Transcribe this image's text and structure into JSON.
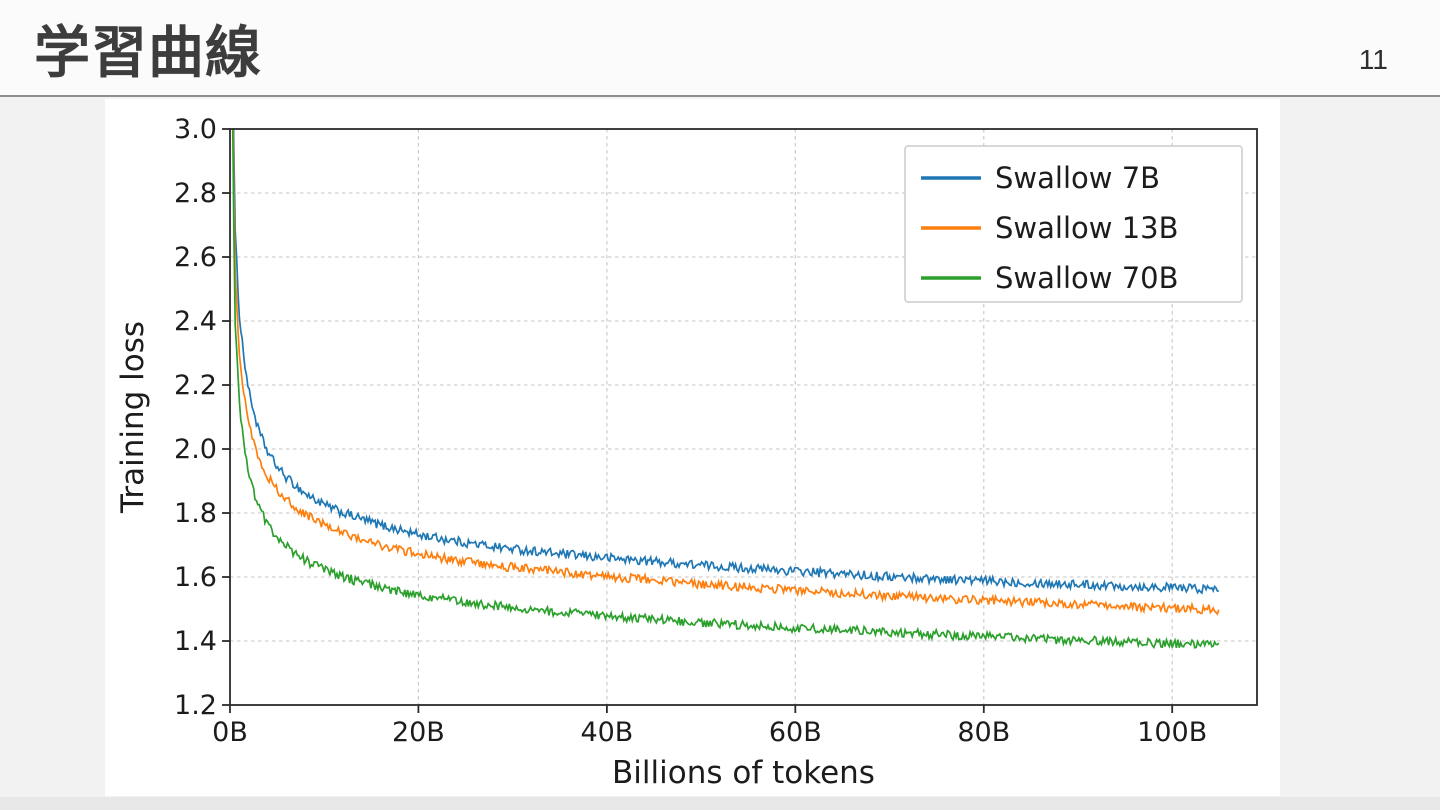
{
  "slide": {
    "title": "学習曲線",
    "page_number": "11"
  },
  "chart_data": {
    "type": "line",
    "title": "",
    "xlabel": "Billions of tokens",
    "ylabel": "Training loss",
    "xlim": [
      0,
      109
    ],
    "ylim": [
      1.2,
      3.0
    ],
    "x_ticks": [
      0,
      20,
      40,
      60,
      80,
      100
    ],
    "x_tick_labels": [
      "0B",
      "20B",
      "40B",
      "60B",
      "80B",
      "100B"
    ],
    "y_ticks": [
      1.2,
      1.4,
      1.6,
      1.8,
      2.0,
      2.2,
      2.4,
      2.6,
      2.8,
      3.0
    ],
    "y_tick_labels": [
      "1.2",
      "1.4",
      "1.6",
      "1.8",
      "2.0",
      "2.2",
      "2.4",
      "2.6",
      "2.8",
      "3.0"
    ],
    "grid": true,
    "legend_position": "upper right",
    "noise_amplitude": 0.014,
    "style": {
      "grid_color": "#c6c6c6",
      "spine_color": "#2b2b2b",
      "legend_border_color": "#cccccc",
      "text_color": "#1c1c1c",
      "plot_background": "#ffffff"
    },
    "series": [
      {
        "name": "Swallow 7B",
        "color": "#1f77b4",
        "x": [
          0.25,
          0.5,
          1,
          1.5,
          2,
          3,
          4,
          5,
          6,
          8,
          10,
          12,
          16,
          20,
          25,
          30,
          35,
          40,
          50,
          60,
          70,
          80,
          90,
          100,
          105
        ],
        "y": [
          3.3,
          2.7,
          2.42,
          2.28,
          2.18,
          2.06,
          1.99,
          1.945,
          1.91,
          1.86,
          1.825,
          1.8,
          1.762,
          1.732,
          1.707,
          1.688,
          1.672,
          1.66,
          1.637,
          1.618,
          1.601,
          1.588,
          1.577,
          1.567,
          1.562
        ]
      },
      {
        "name": "Swallow 13B",
        "color": "#ff7f0e",
        "x": [
          0.25,
          0.5,
          1,
          1.5,
          2,
          3,
          4,
          5,
          6,
          8,
          10,
          12,
          16,
          20,
          25,
          30,
          35,
          40,
          50,
          60,
          70,
          80,
          90,
          100,
          105
        ],
        "y": [
          3.2,
          2.58,
          2.3,
          2.17,
          2.08,
          1.975,
          1.915,
          1.873,
          1.842,
          1.795,
          1.762,
          1.737,
          1.7,
          1.672,
          1.648,
          1.63,
          1.615,
          1.602,
          1.578,
          1.558,
          1.541,
          1.527,
          1.514,
          1.503,
          1.498
        ]
      },
      {
        "name": "Swallow 70B",
        "color": "#2ca02c",
        "x": [
          0.25,
          0.5,
          1,
          1.5,
          2,
          3,
          4,
          5,
          6,
          8,
          10,
          12,
          16,
          20,
          25,
          30,
          35,
          40,
          50,
          60,
          70,
          80,
          90,
          100,
          105
        ],
        "y": [
          3.1,
          2.42,
          2.14,
          2.01,
          1.92,
          1.82,
          1.765,
          1.725,
          1.695,
          1.652,
          1.622,
          1.6,
          1.567,
          1.543,
          1.521,
          1.505,
          1.49,
          1.478,
          1.458,
          1.441,
          1.427,
          1.414,
          1.402,
          1.392,
          1.387
        ]
      }
    ]
  }
}
